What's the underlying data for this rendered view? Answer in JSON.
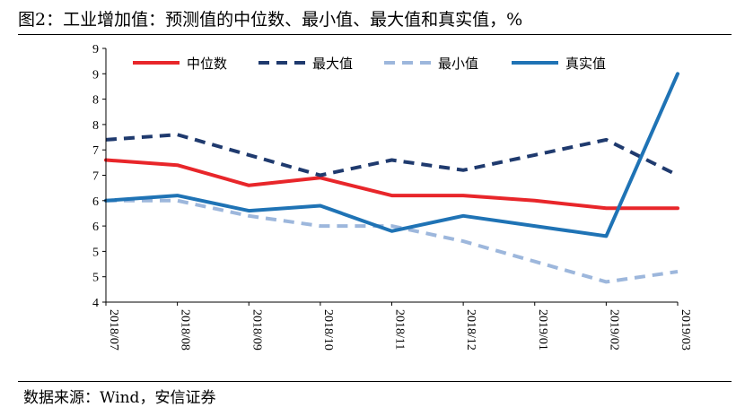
{
  "title": "图2：工业增加值：预测值的中位数、最小值、最大值和真实值，%",
  "source": "数据来源：Wind，安信证券",
  "chart_data": {
    "type": "line",
    "title": "图2：工业增加值：预测值的中位数、最小值、最大值和真实值，%",
    "xlabel": "",
    "ylabel": "",
    "ylim": [
      4.0,
      9.0
    ],
    "y_tick_values": [
      4.0,
      4.5,
      5.0,
      5.5,
      6.0,
      6.5,
      7.0,
      7.5,
      8.0,
      8.5,
      9.0
    ],
    "y_tick_labels": [
      "4",
      "5",
      "5",
      "6",
      "6",
      "7",
      "7",
      "8",
      "8",
      "9",
      "9"
    ],
    "categories": [
      "2018/07",
      "2018/08",
      "2018/09",
      "2018/10",
      "2018/11",
      "2018/12",
      "2019/01",
      "2019/02",
      "2019/03"
    ],
    "grid": false,
    "legend_position": "top",
    "series": [
      {
        "name": "中位数",
        "color": "#e8262a",
        "dash": "solid",
        "values": [
          6.8,
          6.7,
          6.3,
          6.45,
          6.1,
          6.1,
          6.0,
          5.85,
          5.85
        ]
      },
      {
        "name": "最大值",
        "color": "#1f3a6e",
        "dash": "dashed",
        "values": [
          7.2,
          7.3,
          6.9,
          6.5,
          6.8,
          6.6,
          6.9,
          7.2,
          6.5
        ]
      },
      {
        "name": "最小值",
        "color": "#9db7dc",
        "dash": "dashed",
        "values": [
          6.0,
          6.0,
          5.7,
          5.5,
          5.5,
          5.2,
          4.8,
          4.4,
          4.6
        ]
      },
      {
        "name": "真实值",
        "color": "#1f73b5",
        "dash": "solid",
        "values": [
          6.0,
          6.1,
          5.8,
          5.9,
          5.4,
          5.7,
          5.5,
          5.3,
          8.5
        ]
      }
    ]
  }
}
